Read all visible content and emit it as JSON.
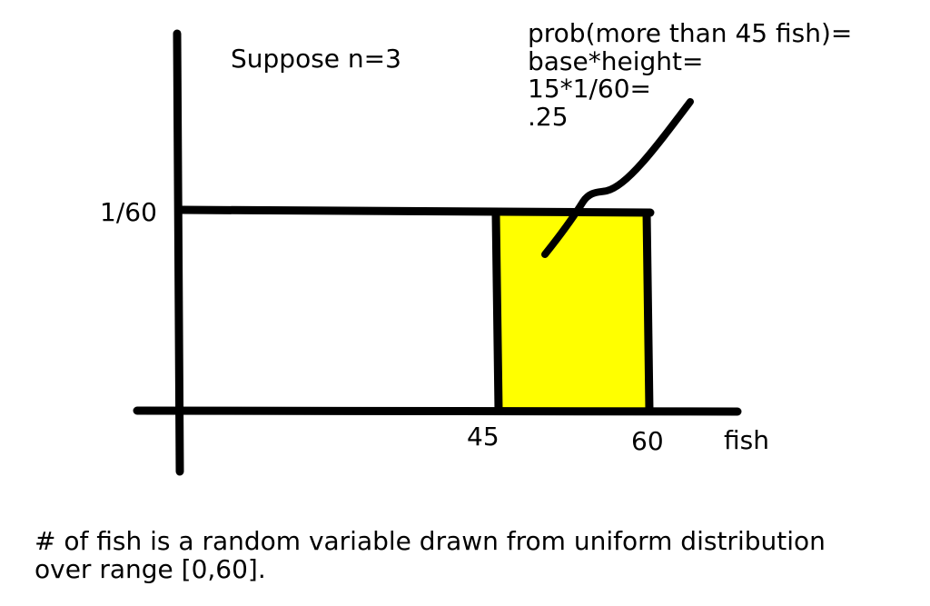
{
  "note": "Suppose n=3",
  "annotation": {
    "lines": [
      "prob(more than 45 fish)=",
      "base*height=",
      "15*1/60=",
      ".25"
    ]
  },
  "axes": {
    "y_tick_label": "1/60",
    "x_tick_labels": [
      "45",
      "60"
    ],
    "x_label": "fish"
  },
  "caption": {
    "lines": [
      "# of fish is a random variable drawn from uniform distribution",
      "over range [0,60]."
    ]
  },
  "colors": {
    "shaded_region": "#ffff00",
    "ink": "#000000"
  }
}
